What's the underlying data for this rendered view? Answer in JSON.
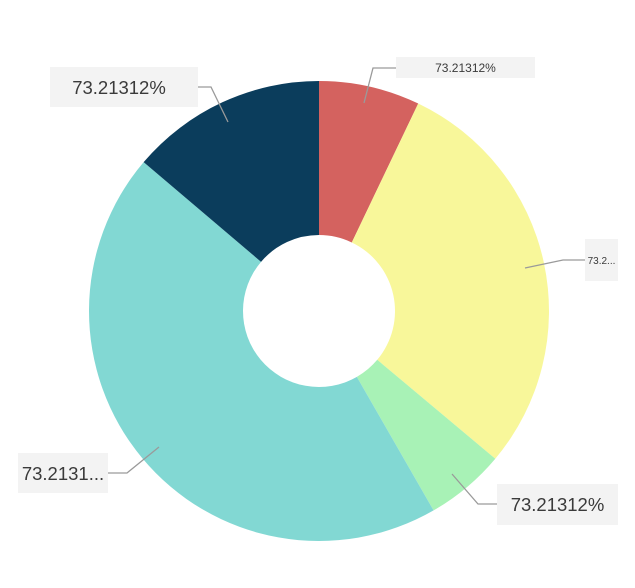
{
  "chart_data": {
    "type": "pie",
    "variant": "donut",
    "legend": "none",
    "slices": [
      {
        "label": "73.21312%",
        "value": 7.1,
        "color": "#d4625f"
      },
      {
        "label": "73.2...",
        "value": 29.0,
        "color": "#f8f79a"
      },
      {
        "label": "73.21312%",
        "value": 5.6,
        "color": "#a8f2b6"
      },
      {
        "label": "73.2131...",
        "value": 44.5,
        "color": "#82d8d3"
      },
      {
        "label": "73.21312%",
        "value": 13.8,
        "color": "#0b3d5c"
      }
    ]
  }
}
